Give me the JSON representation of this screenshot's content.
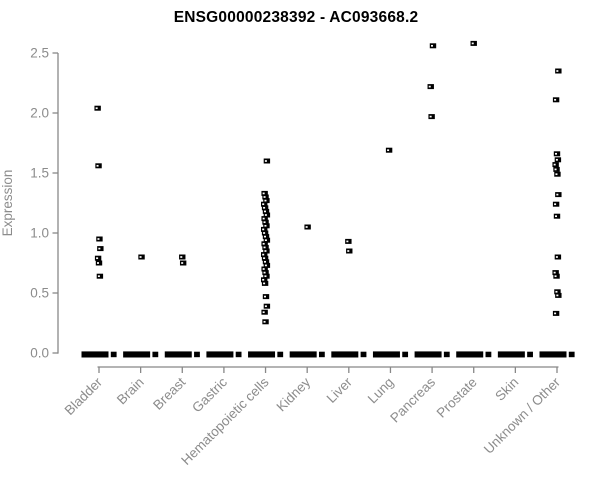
{
  "colors": {
    "point": "#000000",
    "axis_line": "#888888",
    "tick_label": "#8c8c8c",
    "title": "#000000",
    "background": "#ffffff"
  },
  "chart_data": {
    "type": "scatter",
    "title": "ENSG00000238392 - AC093668.2",
    "xlabel": "",
    "ylabel": "Expression",
    "ylim": [
      0,
      2.5
    ],
    "yticks": [
      0.0,
      0.5,
      1.0,
      1.5,
      2.0,
      2.5
    ],
    "grid": false,
    "legend": "none",
    "marker": "small-open-square",
    "x_tick_label_rotation_deg": 45,
    "categories": [
      "Bladder",
      "Brain",
      "Breast",
      "Gastric",
      "Hematopoietic cells",
      "Kidney",
      "Liver",
      "Lung",
      "Pancreas",
      "Prostate",
      "Skin",
      "Unknown / Other"
    ],
    "zero_cluster_note": "Every category has a dense cluster of samples at expression 0, rendered as a thick black dash on the baseline",
    "series": [
      {
        "category": "Bladder",
        "zero_cluster": true,
        "values": [
          2.04,
          1.56,
          0.95,
          0.87,
          0.79,
          0.75,
          0.64
        ]
      },
      {
        "category": "Brain",
        "zero_cluster": true,
        "values": [
          0.8
        ]
      },
      {
        "category": "Breast",
        "zero_cluster": true,
        "values": [
          0.8,
          0.75
        ]
      },
      {
        "category": "Gastric",
        "zero_cluster": true,
        "values": []
      },
      {
        "category": "Hematopoietic cells",
        "zero_cluster": true,
        "values": [
          1.6,
          1.33,
          1.3,
          1.27,
          1.24,
          1.21,
          1.18,
          1.15,
          1.12,
          1.09,
          1.06,
          1.03,
          1.0,
          0.97,
          0.94,
          0.91,
          0.88,
          0.85,
          0.82,
          0.79,
          0.76,
          0.73,
          0.7,
          0.67,
          0.64,
          0.61,
          0.58,
          0.47,
          0.39,
          0.34,
          0.26
        ]
      },
      {
        "category": "Kidney",
        "zero_cluster": true,
        "values": [
          1.05
        ]
      },
      {
        "category": "Liver",
        "zero_cluster": true,
        "values": [
          0.93,
          0.85
        ]
      },
      {
        "category": "Lung",
        "zero_cluster": true,
        "values": [
          1.69
        ]
      },
      {
        "category": "Pancreas",
        "zero_cluster": true,
        "values": [
          2.56,
          2.22,
          1.97
        ]
      },
      {
        "category": "Prostate",
        "zero_cluster": true,
        "values": [
          2.58
        ]
      },
      {
        "category": "Skin",
        "zero_cluster": true,
        "values": []
      },
      {
        "category": "Unknown / Other",
        "zero_cluster": true,
        "values": [
          2.35,
          2.11,
          1.66,
          1.61,
          1.57,
          1.53,
          1.49,
          1.32,
          1.24,
          1.14,
          0.8,
          0.67,
          0.64,
          0.51,
          0.48,
          0.33
        ]
      }
    ]
  }
}
